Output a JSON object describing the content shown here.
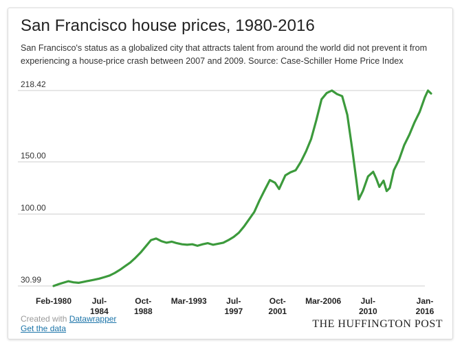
{
  "header": {
    "title": "San Francisco house prices, 1980-2016",
    "subtitle": "San Francisco's status as a globalized city that attracts talent from around the world did not prevent it from experiencing a house-price crash between 2007 and 2009. Source: Case-Schiller Home Price Index"
  },
  "footer": {
    "created_with": "Created with",
    "tool_link": "Datawrapper",
    "get_data": "Get the data",
    "brand": "THE HUFFINGTON POST"
  },
  "colors": {
    "line": "#3c9a3c",
    "grid": "#cccccc"
  },
  "chart_data": {
    "type": "line",
    "title": "San Francisco house prices, 1980-2016",
    "ylim": [
      30.99,
      218.42
    ],
    "yticks": [
      {
        "value": 218.42,
        "label": "218.42"
      },
      {
        "value": 150,
        "label": "150.00"
      },
      {
        "value": 100,
        "label": "100.00"
      },
      {
        "value": 30.99,
        "label": "30.99"
      }
    ],
    "xlim": [
      1980.083,
      2016.0
    ],
    "xticks": [
      {
        "value": 1980.083,
        "label": [
          "Feb-1980"
        ]
      },
      {
        "value": 1984.5,
        "label": [
          "Jul-",
          "1984"
        ]
      },
      {
        "value": 1988.75,
        "label": [
          "Oct-",
          "1988"
        ]
      },
      {
        "value": 1993.167,
        "label": [
          "Mar-1993"
        ]
      },
      {
        "value": 1997.5,
        "label": [
          "Jul-",
          "1997"
        ]
      },
      {
        "value": 2001.75,
        "label": [
          "Oct-",
          "2001"
        ]
      },
      {
        "value": 2006.167,
        "label": [
          "Mar-2006"
        ]
      },
      {
        "value": 2010.5,
        "label": [
          "Jul-",
          "2010"
        ]
      },
      {
        "value": 2016.0,
        "label": [
          "Jan-",
          "2016"
        ]
      }
    ],
    "series": [
      {
        "points": [
          [
            1980.08,
            31.0
          ],
          [
            1980.5,
            32.5
          ],
          [
            1981.0,
            34.0
          ],
          [
            1981.5,
            35.5
          ],
          [
            1982.0,
            34.5
          ],
          [
            1982.5,
            34.0
          ],
          [
            1983.0,
            35.0
          ],
          [
            1983.5,
            36.0
          ],
          [
            1984.0,
            37.0
          ],
          [
            1984.5,
            38.0
          ],
          [
            1985.0,
            39.5
          ],
          [
            1985.5,
            41.0
          ],
          [
            1986.0,
            43.5
          ],
          [
            1986.5,
            46.5
          ],
          [
            1987.0,
            50.0
          ],
          [
            1987.5,
            53.5
          ],
          [
            1988.0,
            58.0
          ],
          [
            1988.5,
            63.0
          ],
          [
            1989.0,
            69.0
          ],
          [
            1989.5,
            75.0
          ],
          [
            1990.0,
            76.5
          ],
          [
            1990.5,
            74.0
          ],
          [
            1991.0,
            72.5
          ],
          [
            1991.5,
            73.5
          ],
          [
            1992.0,
            72.0
          ],
          [
            1992.5,
            71.0
          ],
          [
            1993.0,
            70.5
          ],
          [
            1993.5,
            71.0
          ],
          [
            1994.0,
            69.5
          ],
          [
            1994.5,
            71.0
          ],
          [
            1995.0,
            72.0
          ],
          [
            1995.5,
            70.5
          ],
          [
            1996.0,
            71.5
          ],
          [
            1996.5,
            72.5
          ],
          [
            1997.0,
            75.0
          ],
          [
            1997.5,
            78.0
          ],
          [
            1998.0,
            82.0
          ],
          [
            1998.5,
            88.0
          ],
          [
            1999.0,
            95.0
          ],
          [
            1999.5,
            102.0
          ],
          [
            2000.0,
            113.0
          ],
          [
            2000.5,
            123.0
          ],
          [
            2001.0,
            132.5
          ],
          [
            2001.5,
            130.0
          ],
          [
            2001.9,
            124.0
          ],
          [
            2002.5,
            137.0
          ],
          [
            2003.0,
            140.0
          ],
          [
            2003.5,
            142.0
          ],
          [
            2004.0,
            150.0
          ],
          [
            2004.5,
            160.0
          ],
          [
            2005.0,
            172.0
          ],
          [
            2005.5,
            190.0
          ],
          [
            2006.0,
            210.0
          ],
          [
            2006.5,
            216.0
          ],
          [
            2007.0,
            218.4
          ],
          [
            2007.5,
            215.0
          ],
          [
            2008.0,
            213.0
          ],
          [
            2008.5,
            195.0
          ],
          [
            2009.0,
            160.0
          ],
          [
            2009.4,
            130.0
          ],
          [
            2009.6,
            114.0
          ],
          [
            2010.0,
            122.0
          ],
          [
            2010.5,
            136.0
          ],
          [
            2011.0,
            140.5
          ],
          [
            2011.3,
            134.0
          ],
          [
            2011.6,
            126.0
          ],
          [
            2012.0,
            132.0
          ],
          [
            2012.3,
            122.0
          ],
          [
            2012.6,
            125.0
          ],
          [
            2013.0,
            142.0
          ],
          [
            2013.5,
            152.0
          ],
          [
            2014.0,
            166.0
          ],
          [
            2014.5,
            176.0
          ],
          [
            2015.0,
            188.0
          ],
          [
            2015.5,
            198.0
          ],
          [
            2016.0,
            212.0
          ],
          [
            2016.3,
            218.42
          ],
          [
            2016.6,
            215.5
          ]
        ]
      }
    ]
  }
}
